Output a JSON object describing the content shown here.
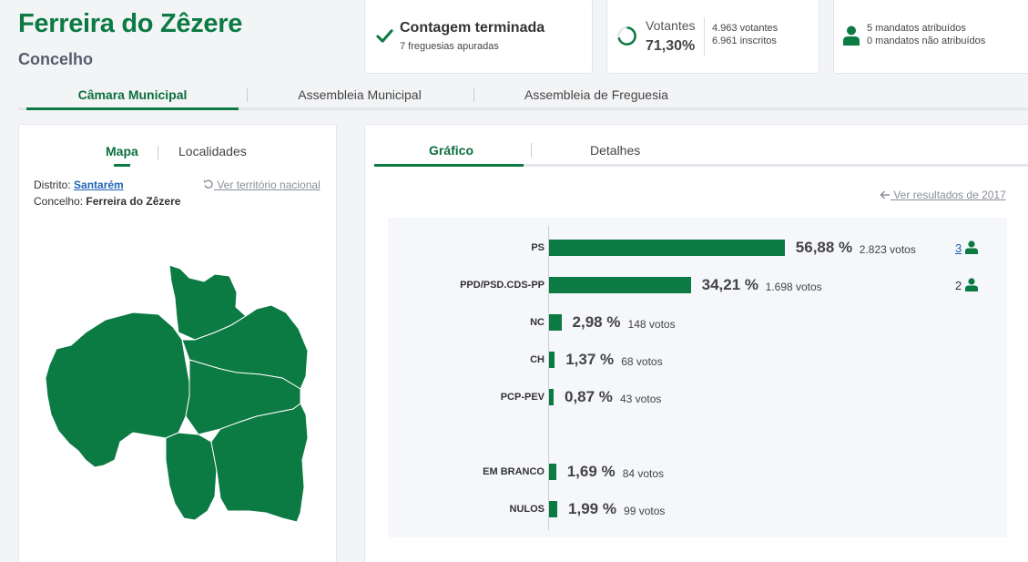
{
  "header": {
    "title": "Ferreira do Zêzere",
    "subtitle": "Concelho"
  },
  "status": {
    "title": "Contagem terminada",
    "subtitle": "7 freguesias apuradas",
    "icon": "check-icon"
  },
  "turnout": {
    "label": "Votantes",
    "percent": "71,30%",
    "percent_value": 71.3,
    "voters": "4.963 votantes",
    "registered": "6.961 inscritos"
  },
  "mandates": {
    "assigned": "5 mandatos atribuídos",
    "unassigned": "0 mandatos não atribuídos"
  },
  "main_tabs": [
    "Câmara Municipal",
    "Assembleia Municipal",
    "Assembleia de Freguesia"
  ],
  "left_panel": {
    "tabs": [
      "Mapa",
      "Localidades"
    ],
    "district_label": "Distrito:",
    "district_value": "Santarém",
    "county_label": "Concelho:",
    "county_value": "Ferreira do Zêzere",
    "national_link": "Ver território nacional"
  },
  "right_panel": {
    "tabs": [
      "Gráfico",
      "Detalhes"
    ],
    "previous_link": "Ver resultados de 2017"
  },
  "colors": {
    "brand_green": "#0c7a43",
    "link_blue": "#1f64b5"
  },
  "chart_data": {
    "type": "bar",
    "orientation": "horizontal",
    "categories": [
      "PS",
      "PPD/PSD.CDS-PP",
      "NC",
      "CH",
      "PCP-PEV",
      "EM BRANCO",
      "NULOS"
    ],
    "values": [
      56.88,
      34.21,
      2.98,
      1.37,
      0.87,
      1.69,
      1.99
    ],
    "value_labels": [
      "56,88 %",
      "34,21 %",
      "2,98 %",
      "1,37 %",
      "0,87 %",
      "1,69 %",
      "1,99 %"
    ],
    "votes": [
      "2.823 votos",
      "1.698 votos",
      "148 votos",
      "68 votos",
      "43 votos",
      "84 votos",
      "99 votos"
    ],
    "seats": [
      "3",
      "2",
      "",
      "",
      "",
      "",
      ""
    ],
    "xlim": [
      0,
      100
    ]
  }
}
